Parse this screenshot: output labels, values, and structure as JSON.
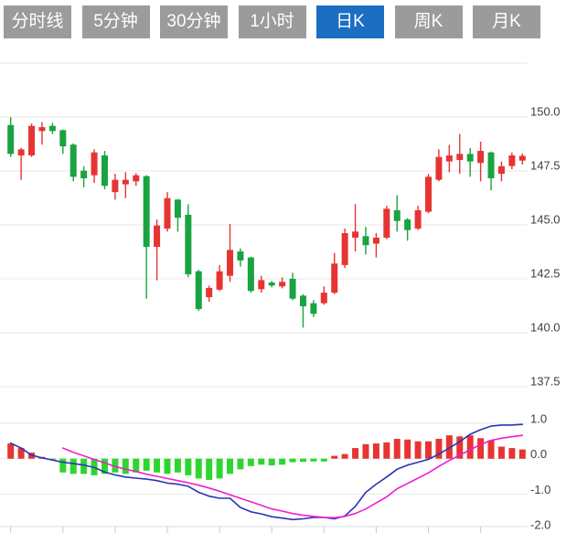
{
  "toolbar": {
    "tabs": [
      {
        "id": "timeline",
        "label": "分时线",
        "active": false
      },
      {
        "id": "5min",
        "label": "5分钟",
        "active": false
      },
      {
        "id": "30min",
        "label": "30分钟",
        "active": false
      },
      {
        "id": "1hour",
        "label": "1小时",
        "active": false
      },
      {
        "id": "daily-k",
        "label": "日K",
        "active": true
      },
      {
        "id": "weekly-k",
        "label": "周K",
        "active": false
      },
      {
        "id": "monthly-k",
        "label": "月K",
        "active": false
      }
    ]
  },
  "colors": {
    "up": "#e63432",
    "down": "#1aa341",
    "hist_up": "#e63432",
    "hist_down": "#2fd52f",
    "dif_line": "#2a35b4",
    "dea_line": "#ef1ed2",
    "grid": "#e7e7e7",
    "axis_line": "#dddddd",
    "tick": "#c8c8c8",
    "axis_text": "#3f3f3f",
    "tab_bg": "#9b9b9b",
    "tab_active_bg": "#1b6ec2"
  },
  "chart_data": {
    "type": "candlestick_with_macd",
    "title": "",
    "legend": [],
    "grid": true,
    "price_pane": {
      "ylim": [
        137.0,
        152.7
      ],
      "gridline_values": [
        152.5,
        150.0,
        147.5,
        145.0,
        142.5,
        140.0,
        137.5
      ],
      "axis_ticks": [
        {
          "value": 150.0,
          "label": "150.0"
        },
        {
          "value": 147.5,
          "label": "147.5"
        },
        {
          "value": 145.0,
          "label": "145.0"
        },
        {
          "value": 142.5,
          "label": "142.5"
        },
        {
          "value": 140.0,
          "label": "140.0"
        },
        {
          "value": 137.5,
          "label": "137.5"
        }
      ],
      "candles_ohlc": [
        [
          149.63,
          150.0,
          148.15,
          148.29
        ],
        [
          148.22,
          148.57,
          147.09,
          148.5
        ],
        [
          148.22,
          149.7,
          148.15,
          149.59
        ],
        [
          149.35,
          149.77,
          148.72,
          149.53
        ],
        [
          149.59,
          149.73,
          149.21,
          149.35
        ],
        [
          149.39,
          149.42,
          148.29,
          148.64
        ],
        [
          148.72,
          148.78,
          147.02,
          147.23
        ],
        [
          147.51,
          147.72,
          146.74,
          147.16
        ],
        [
          147.3,
          148.5,
          146.95,
          148.36
        ],
        [
          148.22,
          148.43,
          146.65,
          146.81
        ],
        [
          146.52,
          147.37,
          146.17,
          147.09
        ],
        [
          146.88,
          147.44,
          146.24,
          147.09
        ],
        [
          147.02,
          147.4,
          146.81,
          147.3
        ],
        [
          147.26,
          147.3,
          141.58,
          143.98
        ],
        [
          143.98,
          145.25,
          142.43,
          144.97
        ],
        [
          144.83,
          146.52,
          144.69,
          146.24
        ],
        [
          146.17,
          146.21,
          144.69,
          145.33
        ],
        [
          145.47,
          145.96,
          142.57,
          142.71
        ],
        [
          142.85,
          142.92,
          141.02,
          141.1
        ],
        [
          141.65,
          142.19,
          141.44,
          142.08
        ],
        [
          142.0,
          143.14,
          141.93,
          142.85
        ],
        [
          142.64,
          145.04,
          142.36,
          143.84
        ],
        [
          143.77,
          143.91,
          143.07,
          143.35
        ],
        [
          143.49,
          143.53,
          141.86,
          141.94
        ],
        [
          142.02,
          142.64,
          141.86,
          142.44
        ],
        [
          142.33,
          142.4,
          142.1,
          142.19
        ],
        [
          142.15,
          142.57,
          142.06,
          142.36
        ],
        [
          142.5,
          142.78,
          141.51,
          141.58
        ],
        [
          141.72,
          141.79,
          140.24,
          141.23
        ],
        [
          141.37,
          141.51,
          140.73,
          140.88
        ],
        [
          141.37,
          142.15,
          141.3,
          141.86
        ],
        [
          141.86,
          143.7,
          141.79,
          143.21
        ],
        [
          143.14,
          144.83,
          143.0,
          144.62
        ],
        [
          144.41,
          145.96,
          143.77,
          144.69
        ],
        [
          144.48,
          144.9,
          143.63,
          144.06
        ],
        [
          144.13,
          144.62,
          143.49,
          144.41
        ],
        [
          144.41,
          145.89,
          144.34,
          145.75
        ],
        [
          145.68,
          146.38,
          144.69,
          145.18
        ],
        [
          145.25,
          145.32,
          144.27,
          144.76
        ],
        [
          144.83,
          145.89,
          144.76,
          145.68
        ],
        [
          145.61,
          147.37,
          145.54,
          147.23
        ],
        [
          147.09,
          148.5,
          147.02,
          148.15
        ],
        [
          147.94,
          148.71,
          147.44,
          148.22
        ],
        [
          148.01,
          149.21,
          147.37,
          148.29
        ],
        [
          148.29,
          148.57,
          147.23,
          147.94
        ],
        [
          147.87,
          148.86,
          147.02,
          148.43
        ],
        [
          148.36,
          148.4,
          146.6,
          147.16
        ],
        [
          147.37,
          147.94,
          147.02,
          147.72
        ],
        [
          147.73,
          148.36,
          147.58,
          148.22
        ],
        [
          147.98,
          148.31,
          147.8,
          148.2
        ]
      ]
    },
    "macd_pane": {
      "ylim": [
        -2.1,
        1.3
      ],
      "gridline_values": [
        1.0,
        0.0,
        -1.0
      ],
      "axis_ticks": [
        {
          "value": 1.0,
          "label": "1.0"
        },
        {
          "value": 0.0,
          "label": "0.0"
        },
        {
          "value": -1.0,
          "label": "-1.0"
        },
        {
          "value": -2.0,
          "label": "-2.0"
        }
      ],
      "histogram": [
        0.43,
        0.3,
        0.17,
        0.05,
        -0.03,
        -0.39,
        -0.43,
        -0.43,
        -0.47,
        -0.43,
        -0.39,
        -0.43,
        -0.39,
        -0.34,
        -0.39,
        -0.43,
        -0.39,
        -0.47,
        -0.56,
        -0.6,
        -0.56,
        -0.43,
        -0.3,
        -0.21,
        -0.17,
        -0.19,
        -0.17,
        -0.1,
        -0.09,
        -0.08,
        -0.08,
        0.08,
        0.13,
        0.3,
        0.41,
        0.43,
        0.46,
        0.56,
        0.54,
        0.49,
        0.49,
        0.56,
        0.66,
        0.63,
        0.66,
        0.58,
        0.52,
        0.34,
        0.3,
        0.26
      ],
      "dif": [
        0.44,
        0.3,
        0.1,
        0.02,
        -0.04,
        -0.1,
        -0.14,
        -0.18,
        -0.25,
        -0.38,
        -0.46,
        -0.52,
        -0.55,
        -0.58,
        -0.62,
        -0.69,
        -0.72,
        -0.78,
        -0.95,
        -1.06,
        -1.12,
        -1.12,
        -1.38,
        -1.5,
        -1.56,
        -1.64,
        -1.68,
        -1.72,
        -1.7,
        -1.66,
        -1.66,
        -1.7,
        -1.62,
        -1.35,
        -0.95,
        -0.72,
        -0.52,
        -0.3,
        -0.18,
        -0.1,
        -0.02,
        0.13,
        0.3,
        0.48,
        0.69,
        0.82,
        0.92,
        0.95,
        0.95,
        0.97
      ],
      "dea": [
        null,
        null,
        null,
        null,
        null,
        0.3,
        0.18,
        0.08,
        -0.02,
        -0.12,
        -0.22,
        -0.3,
        -0.36,
        -0.44,
        -0.5,
        -0.56,
        -0.62,
        -0.68,
        -0.75,
        -0.83,
        -0.92,
        -1.02,
        -1.12,
        -1.22,
        -1.32,
        -1.42,
        -1.48,
        -1.55,
        -1.6,
        -1.63,
        -1.66,
        -1.67,
        -1.63,
        -1.55,
        -1.42,
        -1.25,
        -1.08,
        -0.85,
        -0.7,
        -0.55,
        -0.4,
        -0.22,
        -0.05,
        0.1,
        0.25,
        0.4,
        0.52,
        0.58,
        0.62,
        0.66
      ],
      "x_tick_every": 5
    }
  }
}
